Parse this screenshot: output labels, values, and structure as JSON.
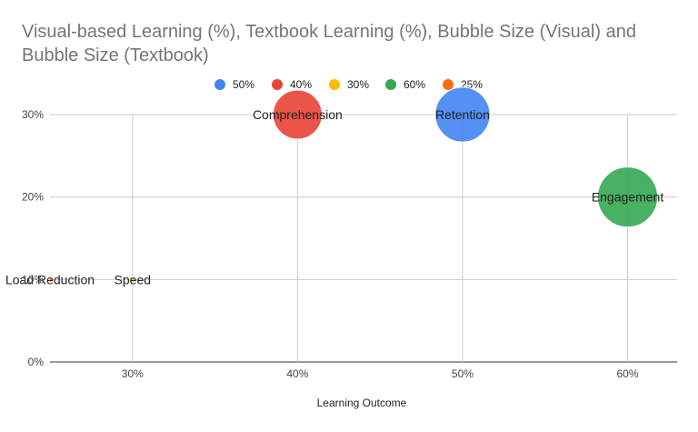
{
  "chart_data": {
    "type": "scatter",
    "title": "Visual-based Learning (%), Textbook Learning (%), Bubble Size (Visual) and Bubble Size (Textbook)",
    "xlabel": "Learning Outcome",
    "ylabel": "",
    "xlim": [
      0.25,
      0.63
    ],
    "ylim": [
      0,
      0.3
    ],
    "x_ticks": [
      "30%",
      "40%",
      "50%",
      "60%"
    ],
    "y_ticks": [
      "0%",
      "10%",
      "20%",
      "30%"
    ],
    "grid": true,
    "legend_position": "top",
    "legend": [
      {
        "label": "50%",
        "color": "#4285f4"
      },
      {
        "label": "40%",
        "color": "#ea4335"
      },
      {
        "label": "30%",
        "color": "#fbbc04"
      },
      {
        "label": "60%",
        "color": "#34a853"
      },
      {
        "label": "25%",
        "color": "#ff6d01"
      }
    ],
    "points": [
      {
        "label": "Retention",
        "x": 0.5,
        "y": 0.3,
        "size": 0.5,
        "color": "#4285f4"
      },
      {
        "label": "Comprehension",
        "x": 0.4,
        "y": 0.3,
        "size": 0.4,
        "color": "#ea4335"
      },
      {
        "label": "Speed",
        "x": 0.3,
        "y": 0.1,
        "size": 0.3,
        "color": "#fbbc04"
      },
      {
        "label": "Engagement",
        "x": 0.6,
        "y": 0.2,
        "size": 0.6,
        "color": "#34a853"
      },
      {
        "label": "Load Reduction",
        "x": 0.25,
        "y": 0.1,
        "size": 0.25,
        "color": "#ff6d01"
      }
    ]
  }
}
